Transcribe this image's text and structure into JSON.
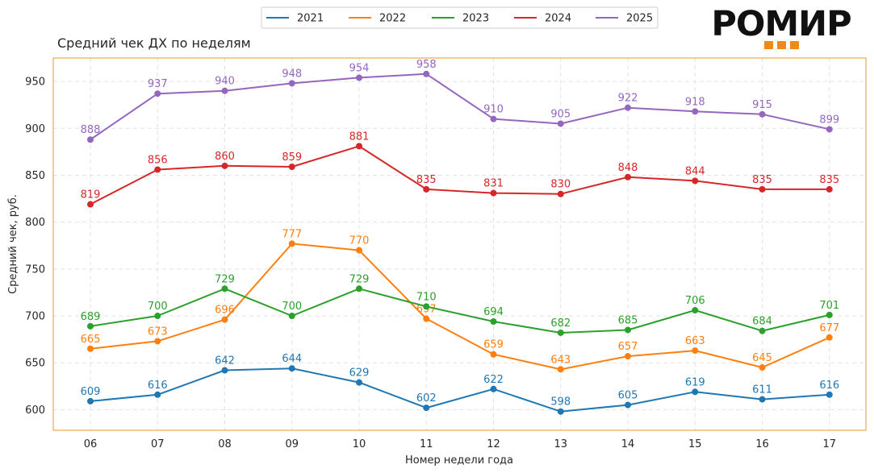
{
  "logo": {
    "text": "РОМИР"
  },
  "chart_data": {
    "type": "line",
    "title": "Средний чек ДХ по неделям",
    "xlabel": "Номер недели года",
    "ylabel": "Средний чек, руб.",
    "categories": [
      "06",
      "07",
      "08",
      "09",
      "10",
      "11",
      "12",
      "13",
      "14",
      "15",
      "16",
      "17"
    ],
    "ylim": [
      578,
      975
    ],
    "yticks": [
      600,
      650,
      700,
      750,
      800,
      850,
      900,
      950
    ],
    "grid": true,
    "legend_position": "top-center",
    "series": [
      {
        "name": "2021",
        "color": "#1f77b4",
        "values": [
          609,
          616,
          642,
          644,
          629,
          602,
          622,
          598,
          605,
          619,
          611,
          616
        ]
      },
      {
        "name": "2022",
        "color": "#ff7f0e",
        "values": [
          665,
          673,
          696,
          777,
          770,
          697,
          659,
          643,
          657,
          663,
          645,
          677
        ]
      },
      {
        "name": "2023",
        "color": "#2ca02c",
        "values": [
          689,
          700,
          729,
          700,
          729,
          710,
          694,
          682,
          685,
          706,
          684,
          701
        ]
      },
      {
        "name": "2024",
        "color": "#d62728",
        "values": [
          819,
          856,
          860,
          859,
          881,
          835,
          831,
          830,
          848,
          844,
          835,
          835
        ]
      },
      {
        "name": "2025",
        "color": "#9467bd",
        "values": [
          888,
          937,
          940,
          948,
          954,
          958,
          910,
          905,
          922,
          918,
          915,
          899
        ]
      }
    ]
  },
  "colors": {
    "frame": "#e8952e",
    "logo_dots": "#f08a17",
    "text": "#262626",
    "grid": "#e3e3e3"
  }
}
